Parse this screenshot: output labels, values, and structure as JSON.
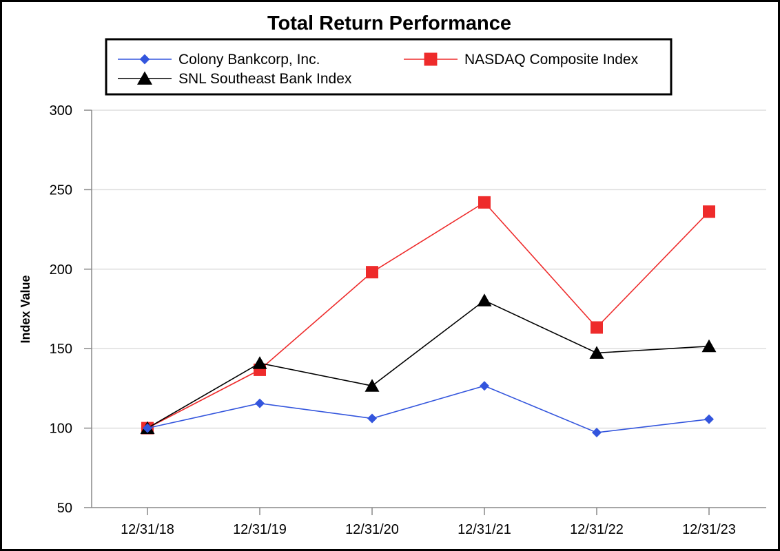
{
  "chart_data": {
    "type": "line",
    "title": "Total Return Performance",
    "xlabel": "",
    "ylabel": "Index Value",
    "categories": [
      "12/31/18",
      "12/31/19",
      "12/31/20",
      "12/31/21",
      "12/31/22",
      "12/31/23"
    ],
    "ylim": [
      50,
      300
    ],
    "yticks": [
      50,
      100,
      150,
      200,
      250,
      300
    ],
    "ytick_labels": [
      "50",
      "100",
      "150",
      "200",
      "250",
      "300"
    ],
    "grid": true,
    "legend_position": "top",
    "series": [
      {
        "name": "Colony Bankcorp, Inc.",
        "marker": "diamond",
        "color": "#3355dd",
        "values": [
          100,
          115.6,
          106.1,
          126.6,
          97.2,
          105.6
        ]
      },
      {
        "name": "NASDAQ Composite Index",
        "marker": "square",
        "color": "#ee2b2b",
        "values": [
          100,
          136.7,
          198.1,
          242.0,
          163.3,
          236.2
        ]
      },
      {
        "name": "SNL Southeast Bank Index",
        "marker": "triangle",
        "color": "#000000",
        "values": [
          100,
          140.9,
          126.6,
          180.3,
          147.3,
          151.5
        ]
      }
    ]
  }
}
